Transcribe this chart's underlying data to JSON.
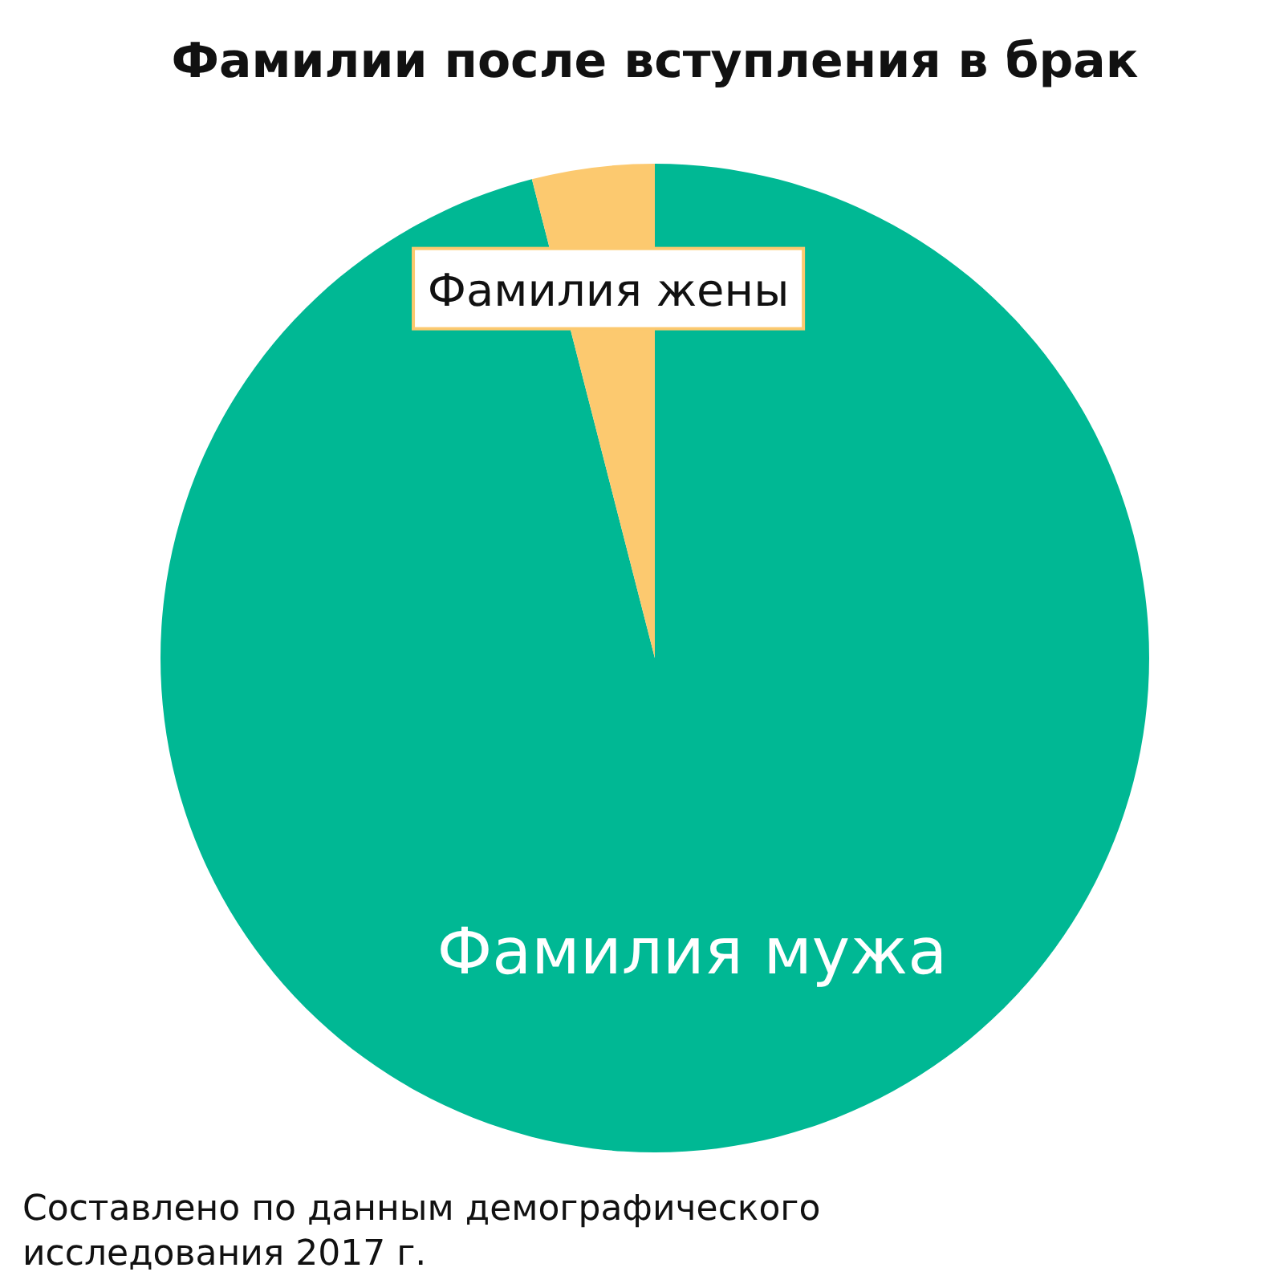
{
  "chart_data": {
    "type": "pie",
    "title": "Фамилии после вступления в брак",
    "categories": [
      "Фамилия мужа",
      "Фамилия жены"
    ],
    "values": [
      96,
      4
    ],
    "colors": [
      "#00b894",
      "#fcc96f"
    ],
    "annotations": [
      "Составлено по данным демографического исследования 2017 г."
    ]
  }
}
